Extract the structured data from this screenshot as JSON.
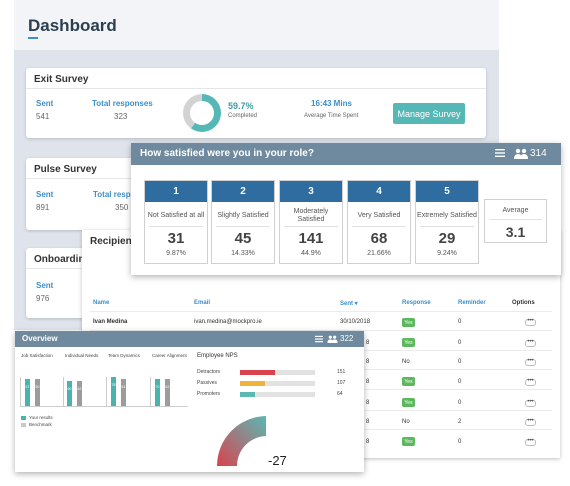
{
  "dashboard": {
    "title": "Dashboard"
  },
  "exit_survey": {
    "title": "Exit Survey",
    "sent_label": "Sent",
    "sent_value": "541",
    "responses_label": "Total responses",
    "responses_value": "323",
    "completed_pct": "59.7%",
    "completed_label": "Completed",
    "completed_fraction": 0.597,
    "time_value": "16:43 Mins",
    "time_label": "Average Time Spent",
    "manage_button": "Manage Survey"
  },
  "pulse_survey": {
    "title": "Pulse Survey",
    "sent_label": "Sent",
    "sent_value": "891",
    "responses_label": "Total respo",
    "responses_value": "350"
  },
  "onboarding": {
    "title": "Onboarding",
    "sent_label": "Sent",
    "sent_value": "976"
  },
  "question_popup": {
    "question": "How satisfied were you in your role?",
    "respondents": "314",
    "options": [
      {
        "num": "1",
        "label": "Not Satisfied at all",
        "count": "31",
        "pct": "9.87%"
      },
      {
        "num": "2",
        "label": "Slightly Satisfied",
        "count": "45",
        "pct": "14.33%"
      },
      {
        "num": "3",
        "label": "Moderately Satisfied",
        "count": "141",
        "pct": "44.9%"
      },
      {
        "num": "4",
        "label": "Very Satisfied",
        "count": "68",
        "pct": "21.66%"
      },
      {
        "num": "5",
        "label": "Extremely Satisfied",
        "count": "29",
        "pct": "9.24%"
      }
    ],
    "average_label": "Average",
    "average_value": "3.1"
  },
  "recipients": {
    "title": "Recipients",
    "headers": {
      "name": "Name",
      "email": "Email",
      "sent": "Sent ▾",
      "response": "Response",
      "reminder": "Reminder",
      "options": "Options"
    },
    "rows": [
      {
        "name": "Ivan Medina",
        "email": "ivan.medina@mockpro.ie",
        "sent": "30/10/2018",
        "response": "Yes",
        "reminder": "0"
      },
      {
        "name": "",
        "email": "",
        "sent": "8",
        "response": "Yes",
        "reminder": "0"
      },
      {
        "name": "",
        "email": "",
        "sent": "8",
        "response": "No",
        "reminder": "0"
      },
      {
        "name": "",
        "email": "",
        "sent": "8",
        "response": "Yes",
        "reminder": "0"
      },
      {
        "name": "",
        "email": "",
        "sent": "8",
        "response": "Yes",
        "reminder": "0"
      },
      {
        "name": "",
        "email": "",
        "sent": "8",
        "response": "No",
        "reminder": "2"
      },
      {
        "name": "",
        "email": "",
        "sent": "8",
        "response": "Yes",
        "reminder": "0"
      }
    ],
    "more_glyph": "•••"
  },
  "overview": {
    "title": "Overview",
    "respondents": "322",
    "categories": [
      {
        "label": "Job Satisfaction",
        "yours": "67",
        "bench": "50"
      },
      {
        "label": "Individual Needs",
        "yours": "60",
        "bench": "62"
      },
      {
        "label": "Team Dynamics",
        "yours": "78",
        "bench": "61"
      },
      {
        "label": "Career Alignment",
        "yours": "70",
        "bench": "62"
      }
    ],
    "legend_yours": "Your results",
    "legend_bench": "Benchmark",
    "nps_title": "Employee NPS",
    "nps_rows": [
      {
        "label": "Detractors",
        "value": "151",
        "fraction": 0.47,
        "color": "#d9434e"
      },
      {
        "label": "Passives",
        "value": "107",
        "fraction": 0.33,
        "color": "#f0b23a"
      },
      {
        "label": "Promoters",
        "value": "64",
        "fraction": 0.2,
        "color": "#5bb8b5"
      }
    ],
    "nps_score": "-27"
  },
  "colors": {
    "accent": "#3d8ec9",
    "header_slate": "#6f8a9e",
    "option_blue": "#2f6c9f",
    "teal": "#55b8b6",
    "yes_green": "#5cb85c"
  }
}
